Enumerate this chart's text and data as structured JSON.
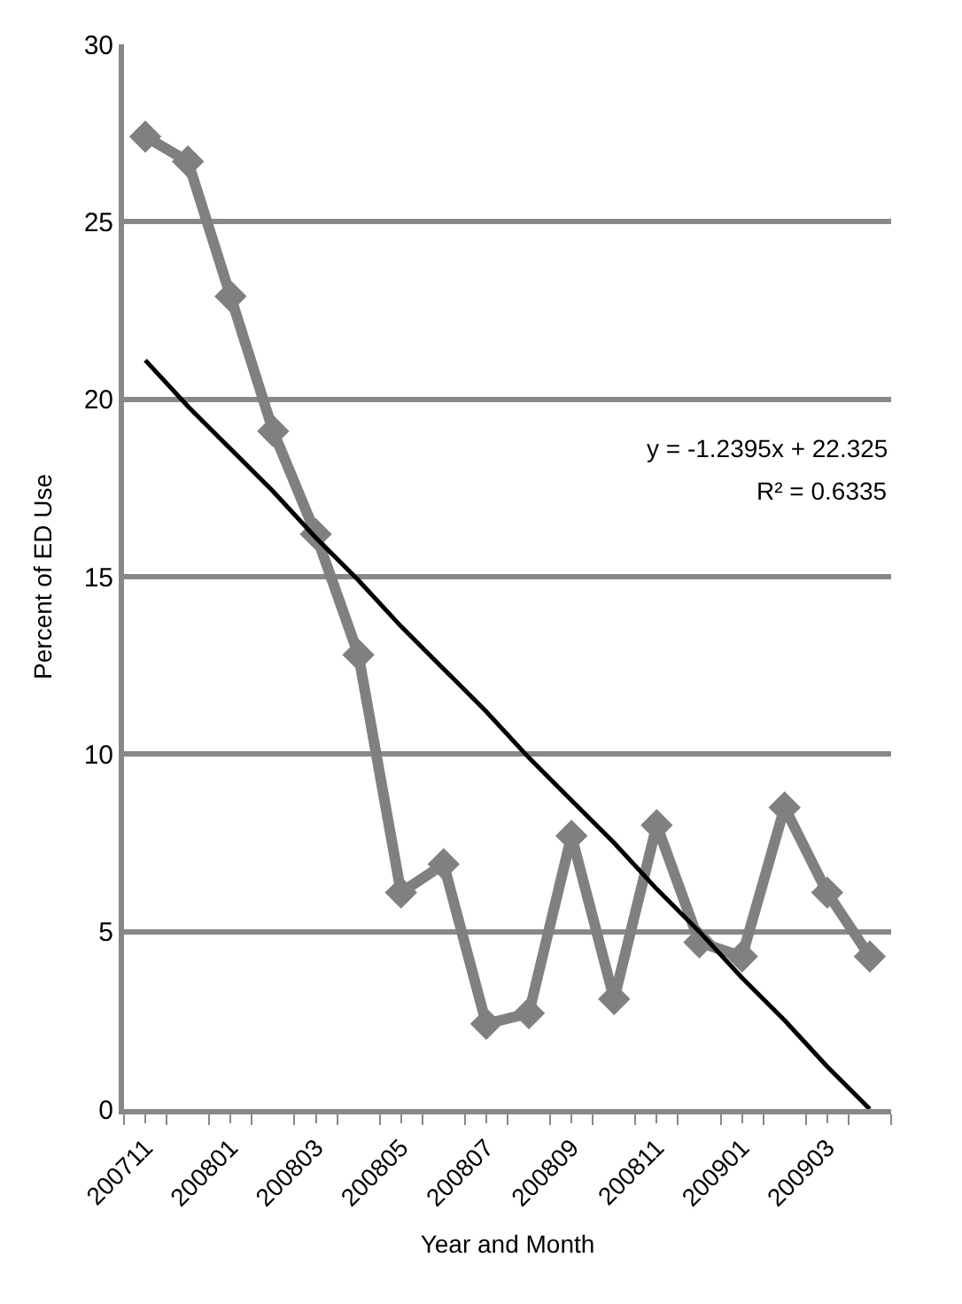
{
  "chart_data": {
    "type": "line",
    "xlabel": "Year and Month",
    "ylabel": "Percent of ED Use",
    "categories": [
      "200711",
      null,
      "200801",
      null,
      "200803",
      null,
      "200805",
      null,
      "200807",
      null,
      "200809",
      null,
      "200811",
      null,
      "200901",
      null,
      "200903",
      null
    ],
    "series": [
      {
        "color": "#808080",
        "marker": "diamond",
        "values": [
          27.4,
          26.7,
          22.9,
          19.1,
          16.2,
          12.8,
          6.1,
          6.9,
          2.4,
          2.7,
          7.7,
          3.1,
          8.0,
          4.7,
          4.3,
          8.5,
          6.1,
          4.3
        ]
      },
      {
        "color": "#000000",
        "marker": "none",
        "values": [
          21.1,
          19.8,
          18.6,
          17.4,
          16.1,
          14.9,
          13.6,
          12.4,
          11.2,
          9.9,
          8.7,
          7.5,
          6.2,
          5.0,
          3.7,
          2.5,
          1.2,
          0.0
        ]
      }
    ],
    "ylim": [
      0,
      30
    ],
    "yticks": [
      0,
      5,
      10,
      15,
      20,
      25,
      30
    ],
    "grid": "y",
    "annotations": [
      "y = -1.2395x + 22.325",
      "R² = 0.6335"
    ]
  }
}
